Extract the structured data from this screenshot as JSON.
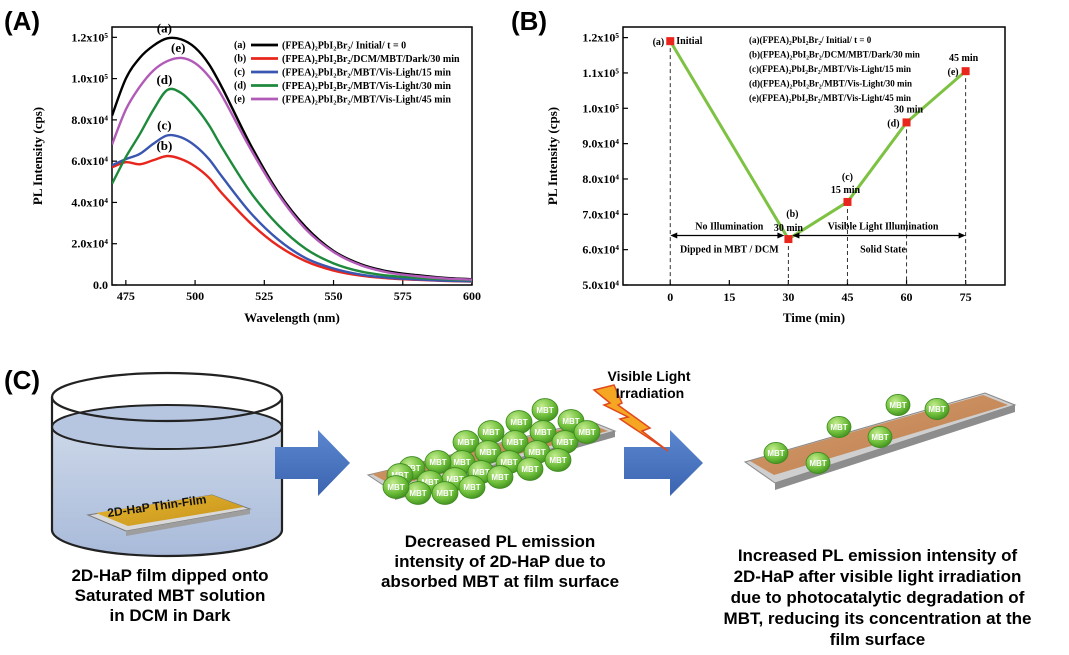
{
  "panels": {
    "a": "(A)",
    "b": "(B)",
    "c": "(C)"
  },
  "chart_data": [
    {
      "type": "line",
      "xlabel": "Wavelength (nm)",
      "ylabel": "PL Intensity (cps)",
      "xlim": [
        470,
        600
      ],
      "ylim": [
        0,
        125000
      ],
      "x_ticks": [
        "475",
        "500",
        "525",
        "550",
        "575",
        "600"
      ],
      "y_ticks": [
        "0.0",
        "2.0x10⁴",
        "4.0x10⁴",
        "6.0x10⁴",
        "8.0x10⁴",
        "1.0x10⁵",
        "1.2x10⁵"
      ],
      "x": [
        470,
        475,
        480,
        485,
        490,
        495,
        500,
        505,
        510,
        520,
        530,
        540,
        550,
        560,
        570,
        580,
        590,
        600
      ],
      "series": [
        {
          "tag": "(a)",
          "name": "(FPEA)₂PbI₂Br₂/ Initial/ t = 0",
          "color": "#000000",
          "values": [
            82000,
            100000,
            110000,
            116000,
            119500,
            119000,
            115000,
            107000,
            95000,
            68000,
            45000,
            28000,
            16500,
            10000,
            6500,
            4800,
            3500,
            2800
          ]
        },
        {
          "tag": "(b)",
          "name": "(FPEA)₂PbI₂Br₂/DCM/MBT/Dark/30 min",
          "color": "#e8261d",
          "values": [
            57000,
            59500,
            58500,
            60500,
            62500,
            61000,
            57500,
            52000,
            44000,
            30000,
            19000,
            11500,
            7000,
            4500,
            3200,
            2500,
            2000,
            1700
          ]
        },
        {
          "tag": "(c)",
          "name": "(FPEA)₂PbI₂Br₂/MBT/Vis-Light/15 min",
          "color": "#3a56b0",
          "values": [
            58000,
            61000,
            63500,
            68500,
            72500,
            71500,
            67500,
            61000,
            52000,
            35000,
            22000,
            13000,
            8000,
            5000,
            3500,
            2700,
            2100,
            1800
          ]
        },
        {
          "tag": "(d)",
          "name": "(FPEA)₂PbI₂Br₂/MBT/Vis-Light/30 min",
          "color": "#1e8a3c",
          "values": [
            49000,
            62000,
            73000,
            85000,
            94500,
            93000,
            86500,
            77500,
            66000,
            45000,
            29000,
            17500,
            10500,
            6500,
            4500,
            3500,
            2800,
            2300
          ]
        },
        {
          "tag": "(e)",
          "name": "(FPEA)₂PbI₂Br₂/MBT/Vis-Light/45 min",
          "color": "#b25ab8",
          "values": [
            68000,
            85000,
            96000,
            104000,
            108500,
            110000,
            107500,
            101000,
            91000,
            66000,
            44000,
            27000,
            16000,
            9500,
            6000,
            4300,
            3200,
            2600
          ]
        }
      ]
    },
    {
      "type": "line",
      "xlabel": "Time (min)",
      "ylabel": "PL Intensity (cps)",
      "xlim": [
        -12,
        85
      ],
      "ylim": [
        50000,
        123000
      ],
      "x_ticks": [
        "0",
        "15",
        "30",
        "45",
        "60",
        "75"
      ],
      "y_ticks": [
        "5.0x10⁴",
        "6.0x10⁴",
        "7.0x10⁴",
        "8.0x10⁴",
        "9.0x10⁴",
        "1.0x10⁵",
        "1.1x10⁵",
        "1.2x10⁵"
      ],
      "color": "#7dc242",
      "marker_color": "#e8261d",
      "points": [
        {
          "x": 0,
          "y": 119000,
          "tag": "(a)",
          "label": "Initial"
        },
        {
          "x": 30,
          "y": 63000,
          "tag": "(b)",
          "label": "30 min"
        },
        {
          "x": 45,
          "y": 73500,
          "tag": "(c)",
          "label": "15 min"
        },
        {
          "x": 60,
          "y": 96000,
          "tag": "(d)",
          "label": "30 min"
        },
        {
          "x": 75,
          "y": 110500,
          "tag": "(e)",
          "label": "45 min"
        }
      ],
      "legend": [
        "(a)(FPEA)₂PbI₂Br₂/ Initial/ t = 0",
        "(b)(FPEA)₂PbI₂Br₂/DCM/MBT/Dark/30 min",
        "(c)(FPEA)₂PbI₂Br₂/MBT/Vis-Light/15 min",
        "(d)(FPEA)₂PbI₂Br₂/MBT/Vis-Light/30 min",
        "(e)(FPEA)₂PbI₂Br₂/MBT/Vis-Light/45 min"
      ],
      "annotations": {
        "no_illumination": "No Illumination",
        "dipped": "Dipped in MBT / DCM",
        "visible_light": "Visible Light Illumination",
        "solid_state": "Solid State"
      }
    }
  ],
  "schematic": {
    "film_label": "2D-HaP Thin-Film",
    "molecule_label": "MBT",
    "irradiation_line1": "Visible Light",
    "irradiation_line2": "Irradiation",
    "captions": {
      "step1": [
        "2D-HaP film dipped onto",
        "Saturated MBT solution",
        "in DCM in Dark"
      ],
      "step2": [
        "Decreased PL emission",
        "intensity of 2D-HaP due to",
        "absorbed MBT at film surface"
      ],
      "step3": [
        "Increased PL emission intensity of",
        "2D-HaP after visible light irradiation",
        "due to photocatalytic degradation of",
        "MBT, reducing its concentration at the",
        "film surface"
      ]
    }
  }
}
